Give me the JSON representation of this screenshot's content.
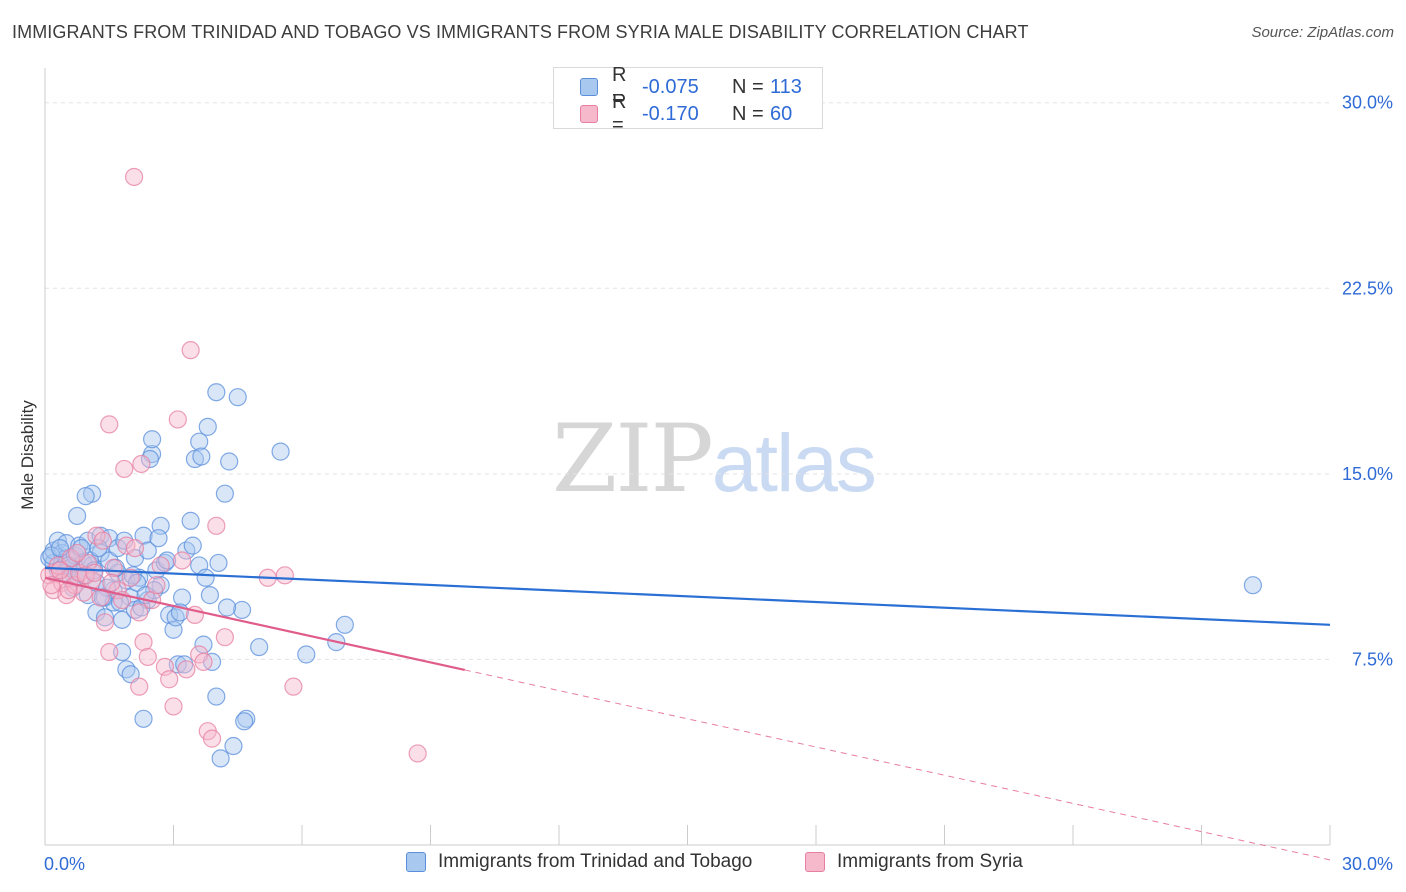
{
  "title": "IMMIGRANTS FROM TRINIDAD AND TOBAGO VS IMMIGRANTS FROM SYRIA MALE DISABILITY CORRELATION CHART",
  "source": "Source: ZipAtlas.com",
  "watermark": {
    "zip": "ZIP",
    "atlas": "atlas"
  },
  "legend": {
    "blue": {
      "r_label": "R =",
      "r_value": "-0.075",
      "n_label": "N =",
      "n_value": "113"
    },
    "pink": {
      "r_label": "R =",
      "r_value": "-0.170",
      "n_label": "N =",
      "n_value": "60"
    }
  },
  "colors": {
    "blue_fill": "#a9c8f0",
    "blue_stroke": "#5b8fdc",
    "blue_line": "#2a6fd4",
    "pink_fill": "#f6b9cc",
    "pink_stroke": "#e67fa2",
    "pink_line": "#e05c8b",
    "tick_label": "#2f6bd6",
    "grid": "#e3e3e3"
  },
  "chart_data": {
    "type": "scatter",
    "title": "IMMIGRANTS FROM TRINIDAD AND TOBAGO VS IMMIGRANTS FROM SYRIA MALE DISABILITY CORRELATION CHART",
    "xlabel": "",
    "ylabel": "Male Disability",
    "xlim": [
      0,
      30
    ],
    "ylim": [
      0,
      31
    ],
    "y_ticks": [
      7.5,
      15.0,
      22.5,
      30.0
    ],
    "y_tick_labels": [
      "7.5%",
      "15.0%",
      "22.5%",
      "30.0%"
    ],
    "x_tick_labels": [
      "0.0%",
      "30.0%"
    ],
    "legend_position": "top-center",
    "series": [
      {
        "name": "Immigrants from Trinidad and Tobago",
        "color": "blue",
        "trend": {
          "x": [
            0,
            30
          ],
          "y": [
            11.2,
            8.9
          ],
          "dashed_from": null
        },
        "points": [
          [
            0.1,
            11.6
          ],
          [
            0.2,
            11.4
          ],
          [
            0.2,
            11.9
          ],
          [
            0.3,
            12.3
          ],
          [
            0.3,
            11.1
          ],
          [
            0.4,
            11.8
          ],
          [
            0.4,
            11.4
          ],
          [
            0.5,
            11.6
          ],
          [
            0.5,
            12.2
          ],
          [
            0.6,
            11.5
          ],
          [
            0.6,
            11.2
          ],
          [
            0.7,
            11.7
          ],
          [
            0.7,
            10.8
          ],
          [
            0.8,
            12.1
          ],
          [
            0.8,
            11.0
          ],
          [
            0.9,
            10.9
          ],
          [
            0.9,
            11.4
          ],
          [
            1.0,
            12.3
          ],
          [
            1.0,
            10.1
          ],
          [
            1.1,
            11.3
          ],
          [
            1.1,
            14.2
          ],
          [
            1.2,
            10.6
          ],
          [
            1.2,
            9.4
          ],
          [
            1.3,
            11.8
          ],
          [
            1.3,
            12.5
          ],
          [
            1.4,
            10.0
          ],
          [
            1.4,
            9.2
          ],
          [
            1.5,
            11.5
          ],
          [
            1.5,
            12.4
          ],
          [
            1.6,
            10.3
          ],
          [
            1.6,
            9.8
          ],
          [
            1.7,
            11.0
          ],
          [
            1.7,
            12.0
          ],
          [
            1.8,
            7.8
          ],
          [
            1.8,
            9.1
          ],
          [
            1.9,
            10.7
          ],
          [
            1.9,
            7.1
          ],
          [
            2.0,
            10.0
          ],
          [
            2.0,
            6.9
          ],
          [
            2.1,
            11.6
          ],
          [
            2.1,
            9.5
          ],
          [
            2.2,
            10.8
          ],
          [
            2.3,
            12.5
          ],
          [
            2.3,
            5.1
          ],
          [
            2.4,
            11.9
          ],
          [
            2.4,
            9.9
          ],
          [
            2.5,
            15.8
          ],
          [
            2.5,
            16.4
          ],
          [
            2.6,
            11.1
          ],
          [
            2.7,
            12.9
          ],
          [
            2.7,
            10.5
          ],
          [
            2.8,
            11.4
          ],
          [
            2.9,
            9.3
          ],
          [
            3.0,
            8.7
          ],
          [
            3.1,
            7.3
          ],
          [
            3.2,
            10.0
          ],
          [
            3.3,
            11.9
          ],
          [
            3.4,
            13.1
          ],
          [
            3.5,
            15.6
          ],
          [
            3.6,
            16.3
          ],
          [
            3.6,
            11.3
          ],
          [
            3.7,
            8.1
          ],
          [
            3.8,
            16.9
          ],
          [
            3.9,
            7.4
          ],
          [
            4.0,
            18.3
          ],
          [
            4.0,
            6.0
          ],
          [
            4.1,
            3.5
          ],
          [
            4.2,
            14.2
          ],
          [
            4.3,
            15.5
          ],
          [
            4.4,
            4.0
          ],
          [
            4.5,
            18.1
          ],
          [
            4.6,
            9.5
          ],
          [
            4.7,
            5.1
          ],
          [
            5.0,
            8.0
          ],
          [
            5.5,
            15.9
          ],
          [
            6.1,
            7.7
          ],
          [
            6.8,
            8.2
          ],
          [
            7.0,
            8.9
          ],
          [
            28.2,
            10.5
          ],
          [
            0.15,
            11.7
          ],
          [
            0.35,
            12.0
          ],
          [
            0.55,
            11.3
          ],
          [
            0.75,
            13.3
          ],
          [
            0.95,
            14.1
          ],
          [
            1.05,
            11.5
          ],
          [
            1.25,
            12.0
          ],
          [
            1.45,
            10.4
          ],
          [
            1.65,
            11.2
          ],
          [
            1.85,
            12.3
          ],
          [
            2.05,
            10.9
          ],
          [
            2.25,
            9.6
          ],
          [
            2.45,
            15.6
          ],
          [
            2.65,
            12.4
          ],
          [
            2.85,
            11.5
          ],
          [
            3.05,
            9.2
          ],
          [
            3.25,
            7.3
          ],
          [
            3.45,
            12.1
          ],
          [
            3.65,
            15.7
          ],
          [
            3.85,
            10.1
          ],
          [
            4.05,
            11.4
          ],
          [
            4.25,
            9.6
          ],
          [
            4.65,
            5.0
          ],
          [
            2.15,
            10.6
          ],
          [
            1.35,
            10.0
          ],
          [
            0.65,
            10.4
          ],
          [
            0.45,
            11.0
          ],
          [
            1.75,
            9.8
          ],
          [
            2.55,
            10.3
          ],
          [
            1.15,
            11.1
          ],
          [
            0.85,
            12.0
          ],
          [
            3.15,
            9.4
          ],
          [
            3.75,
            10.8
          ],
          [
            2.35,
            10.1
          ]
        ]
      },
      {
        "name": "Immigrants from Syria",
        "color": "pink",
        "trend": {
          "x": [
            0,
            30
          ],
          "y": [
            10.8,
            -0.6
          ],
          "solid_until_x": 9.8
        },
        "points": [
          [
            0.1,
            10.9
          ],
          [
            0.2,
            10.3
          ],
          [
            0.2,
            11.0
          ],
          [
            0.3,
            11.3
          ],
          [
            0.4,
            10.6
          ],
          [
            0.5,
            10.1
          ],
          [
            0.6,
            10.8
          ],
          [
            0.6,
            11.6
          ],
          [
            0.7,
            10.5
          ],
          [
            0.8,
            11.0
          ],
          [
            0.9,
            10.2
          ],
          [
            1.0,
            11.4
          ],
          [
            1.1,
            10.7
          ],
          [
            1.2,
            12.5
          ],
          [
            1.3,
            10.0
          ],
          [
            1.4,
            9.0
          ],
          [
            1.5,
            17.0
          ],
          [
            1.5,
            7.8
          ],
          [
            1.6,
            11.2
          ],
          [
            1.7,
            10.3
          ],
          [
            1.8,
            9.9
          ],
          [
            1.9,
            12.1
          ],
          [
            2.0,
            10.8
          ],
          [
            2.1,
            12.0
          ],
          [
            2.2,
            9.4
          ],
          [
            2.2,
            6.4
          ],
          [
            2.3,
            8.2
          ],
          [
            2.4,
            7.6
          ],
          [
            2.5,
            9.9
          ],
          [
            2.6,
            10.5
          ],
          [
            2.7,
            11.3
          ],
          [
            2.8,
            7.2
          ],
          [
            2.9,
            6.7
          ],
          [
            3.0,
            5.6
          ],
          [
            3.1,
            17.2
          ],
          [
            3.2,
            11.5
          ],
          [
            3.3,
            7.1
          ],
          [
            3.4,
            20.0
          ],
          [
            3.5,
            9.3
          ],
          [
            3.6,
            7.7
          ],
          [
            3.7,
            7.4
          ],
          [
            3.8,
            4.6
          ],
          [
            3.9,
            4.3
          ],
          [
            4.0,
            12.9
          ],
          [
            4.2,
            8.4
          ],
          [
            5.2,
            10.8
          ],
          [
            5.6,
            10.9
          ],
          [
            5.8,
            6.4
          ],
          [
            8.7,
            3.7
          ],
          [
            2.08,
            27.0
          ],
          [
            0.15,
            10.5
          ],
          [
            0.35,
            11.1
          ],
          [
            0.55,
            10.3
          ],
          [
            0.75,
            11.8
          ],
          [
            0.95,
            10.9
          ],
          [
            1.15,
            11.0
          ],
          [
            1.35,
            12.3
          ],
          [
            1.55,
            10.6
          ],
          [
            1.85,
            15.2
          ],
          [
            2.25,
            15.4
          ]
        ]
      }
    ]
  }
}
